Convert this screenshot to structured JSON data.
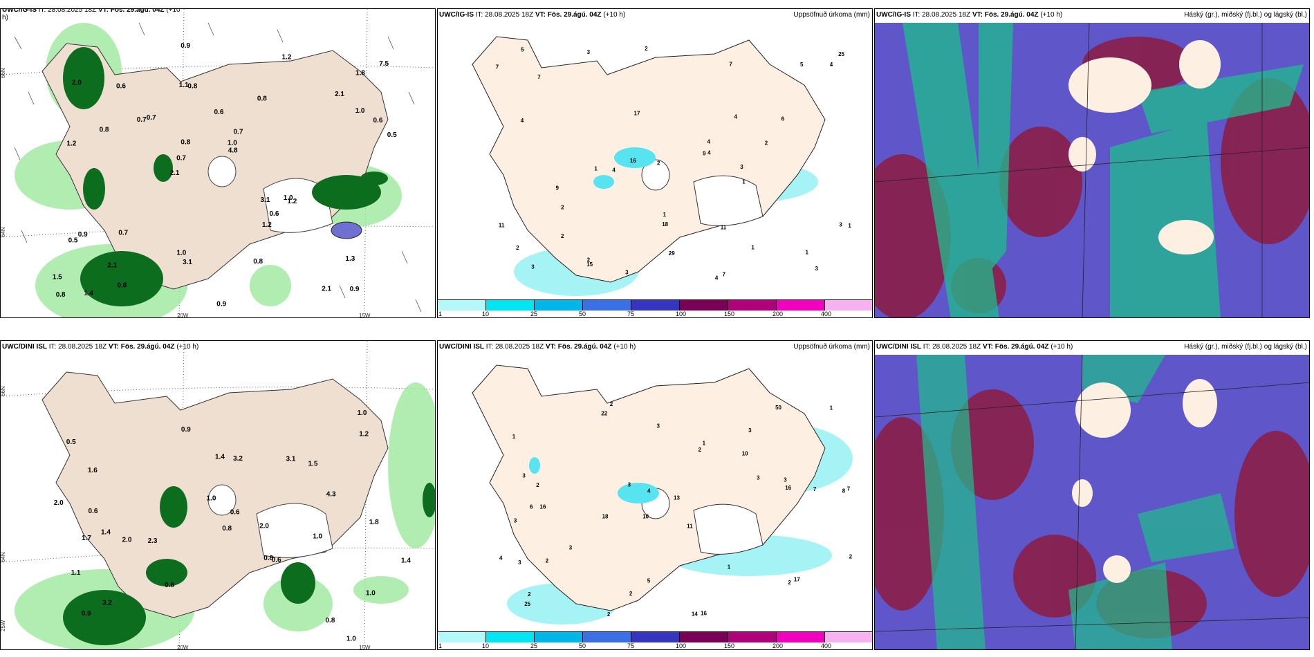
{
  "panels": {
    "top_left": {
      "title_bold": "UWC/IG-IS",
      "title_rest": " IT: 28.08.2025 18Z ",
      "vt_bold": "VT: Fös. 29.ágú. 04Z",
      "offset": " (+10",
      "offset2": "h)"
    },
    "top_mid": {
      "title_bold": "UWC/IG-IS",
      "title_rest": " IT: 28.08.2025 18Z ",
      "vt_bold": "VT: Fös. 29.ágú. 04Z",
      "offset": " (+10 h)",
      "right_label": "Uppsöfnuð úrkoma (mm)"
    },
    "top_right": {
      "title_bold": "UWC/IG-IS",
      "title_rest": " IT: 28.08.2025 18Z ",
      "vt_bold": "VT: Fös. 29.ágú. 04Z",
      "offset": " (+10 h)",
      "right_label": "Háský (gr.), miðský (fj.bl.) og lágský (bl.)"
    },
    "bot_left": {
      "title_bold": "UWC/DINI ISL",
      "title_rest": " IT: 28.08.2025 18Z ",
      "vt_bold": "VT: Fös. 29.ágú. 04Z",
      "offset": " (+10 h)"
    },
    "bot_mid": {
      "title_bold": "UWC/DINI ISL",
      "title_rest": " IT: 28.08.2025 18Z ",
      "vt_bold": "VT: Fös. 29.ágú. 04Z",
      "offset": " (+10 h)",
      "right_label": "Uppsöfnuð úrkoma (mm)"
    },
    "bot_right": {
      "title_bold": "UWC/DINI ISL",
      "title_rest": " IT: 28.08.2025 18Z ",
      "vt_bold": "VT: Fös. 29.ágú. 04Z",
      "offset": " (+10 h)",
      "right_label": "Háský (gr.), miðský (fj.bl.) og lágský (bl.)"
    }
  },
  "axis_labels": {
    "lon_20": "20W",
    "lon_15": "15W",
    "lat_66": "66N",
    "lat_64": "64N",
    "lon_25": "25W"
  },
  "colorbar": {
    "labels": [
      "1",
      "10",
      "25",
      "50",
      "75",
      "100",
      "150",
      "200",
      "400"
    ],
    "colors": [
      "#b5f8fb",
      "#00e5f0",
      "#00b6e8",
      "#3a6fe6",
      "#3535c0",
      "#7a0057",
      "#b0007a",
      "#f200c0",
      "#f5b1f0"
    ]
  },
  "colors": {
    "land": "#eedfd0",
    "land_mid": "#fdf0e3",
    "precip_light": "#a6f3f5",
    "precip_mid": "#58e3f0",
    "green_light": "#9ee89e",
    "green_dark": "#0d6d1f",
    "cloud_blue": "#5e56c9",
    "cloud_red": "#8a1f48",
    "cloud_green": "#1fbd8c"
  },
  "top_left_values": [
    "0.9",
    "1.2",
    "1.8",
    "2.1",
    "0.8",
    "1.4",
    "1.1",
    "0.6",
    "0.9",
    "0.7",
    "1.5",
    "2.1",
    "0.8",
    "0.7",
    "1.2",
    "2.0",
    "0.9",
    "0.5",
    "3.1",
    "1.0",
    "0.7",
    "1.0",
    "0.8",
    "0.6",
    "1.2",
    "0.7",
    "2.1",
    "1.3",
    "1.0",
    "0.9",
    "0.7",
    "0.8",
    "1.2",
    "0.8",
    "0.6",
    "1.0",
    "0.8",
    "3.1",
    "4.8",
    "0.5",
    "2.1",
    "7.5",
    "0.6",
    "0.8"
  ],
  "top_mid_values": [
    "3",
    "4",
    "2",
    "1",
    "3",
    "7",
    "1",
    "3",
    "2",
    "17",
    "5",
    "29",
    "16",
    "18",
    "7",
    "9",
    "4",
    "15",
    "4",
    "7",
    "11",
    "25",
    "4",
    "3",
    "6",
    "9",
    "11",
    "2",
    "5",
    "1",
    "2",
    "7",
    "1",
    "4",
    "2",
    "3",
    "3",
    "2",
    "4",
    "1",
    "4",
    "2",
    "1"
  ],
  "bot_left_values": [
    "1.0",
    "1.4",
    "0.8",
    "0.5",
    "1.0",
    "1.6",
    "3.2",
    "2.3",
    "1.5",
    "1.4",
    "3.1",
    "0.8",
    "0.8",
    "0.9",
    "2.0",
    "1.1",
    "1.0",
    "0.6",
    "2.0",
    "0.9",
    "1.0",
    "3.2",
    "4.3",
    "1.4",
    "1.8",
    "0.6",
    "2.0",
    "0.8",
    "1.0",
    "1.2",
    "0.6",
    "1.7"
  ],
  "bot_mid_values": [
    "2",
    "3",
    "8",
    "10",
    "11",
    "16",
    "1",
    "10",
    "3",
    "2",
    "13",
    "25",
    "22",
    "18",
    "14",
    "16",
    "5",
    "50",
    "3",
    "3",
    "2",
    "6",
    "7",
    "7",
    "4",
    "3",
    "4",
    "16",
    "17",
    "3",
    "2",
    "1",
    "2",
    "3",
    "1",
    "2",
    "3",
    "2",
    "1",
    "3",
    "2",
    "2"
  ]
}
